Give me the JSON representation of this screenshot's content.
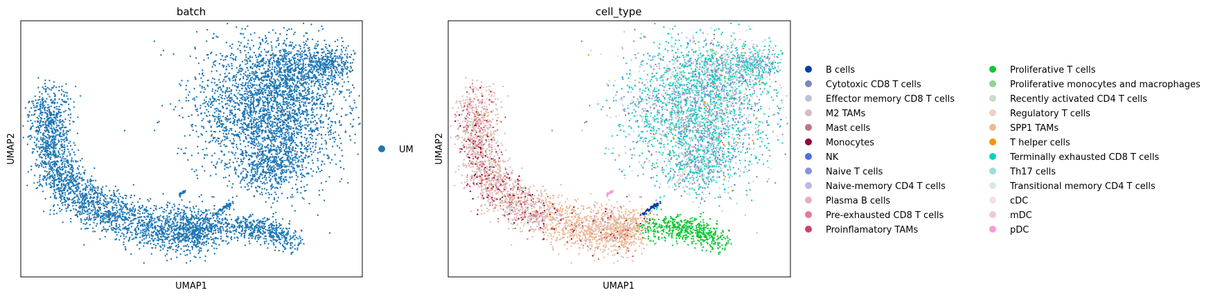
{
  "chart_data": [
    {
      "type": "scatter",
      "title": "batch",
      "xlabel": "UMAP1",
      "ylabel": "UMAP2",
      "grid": false,
      "ticks": "none",
      "legend_position": "right",
      "series": [
        {
          "name": "UM",
          "color": "#1f77b4"
        }
      ]
    },
    {
      "type": "scatter",
      "title": "cell_type",
      "xlabel": "UMAP1",
      "ylabel": "UMAP2",
      "grid": false,
      "ticks": "none",
      "legend_position": "right",
      "legend_columns": 2,
      "series": [
        {
          "name": "B cells",
          "color": "#023fa5"
        },
        {
          "name": "Cytotoxic CD8 T cells",
          "color": "#7d87b9"
        },
        {
          "name": "Effector memory CD8 T cells",
          "color": "#bec1d4"
        },
        {
          "name": "M2 TAMs",
          "color": "#d6bcc0"
        },
        {
          "name": "Mast cells",
          "color": "#bb7784"
        },
        {
          "name": "Monocytes",
          "color": "#8e063b"
        },
        {
          "name": "NK",
          "color": "#4a6fe3"
        },
        {
          "name": "Naive T cells",
          "color": "#8595e1"
        },
        {
          "name": "Naive-memory CD4 T cells",
          "color": "#b5bbe3"
        },
        {
          "name": "Plasma B cells",
          "color": "#e6afb9"
        },
        {
          "name": "Pre-exhausted CD8 T cells",
          "color": "#e07b91"
        },
        {
          "name": "Proinflamatory TAMs",
          "color": "#d33f6a"
        },
        {
          "name": "Proliferative T cells",
          "color": "#11c638"
        },
        {
          "name": "Proliferative monocytes and macrophages",
          "color": "#8dd593"
        },
        {
          "name": "Recently activated CD4 T cells",
          "color": "#c6dec7"
        },
        {
          "name": "Regulatory T cells",
          "color": "#ead3c6"
        },
        {
          "name": "SPP1 TAMs",
          "color": "#f0b98d"
        },
        {
          "name": "T helper cells",
          "color": "#ef9708"
        },
        {
          "name": "Terminally exhausted CD8 T cells",
          "color": "#0fcfc0"
        },
        {
          "name": "Th17 cells",
          "color": "#9cded6"
        },
        {
          "name": "Transitional memory CD4 T cells",
          "color": "#d5eae7"
        },
        {
          "name": "cDC",
          "color": "#f3e1eb"
        },
        {
          "name": "mDC",
          "color": "#f6c4e1"
        },
        {
          "name": "pDC",
          "color": "#f79cd4"
        }
      ]
    }
  ]
}
